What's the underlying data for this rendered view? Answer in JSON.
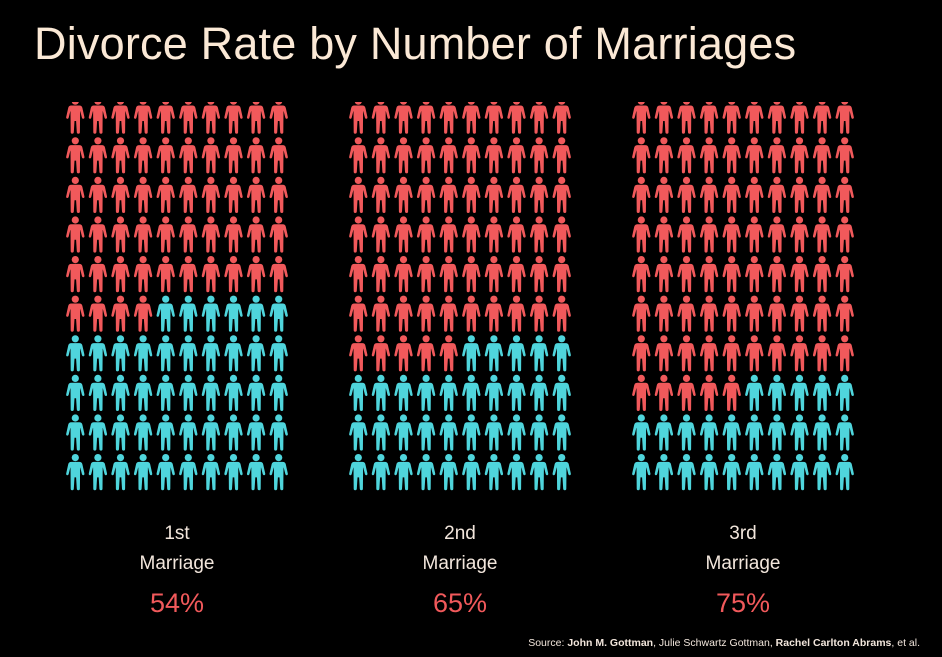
{
  "title": "Divorce Rate by Number of Marriages",
  "colors": {
    "divorced": "#f1595b",
    "not_divorced": "#4fd5dc",
    "background": "#000000",
    "text": "#f2e6dc"
  },
  "chart_data": {
    "type": "pictogram",
    "title": "Divorce Rate by Number of Marriages",
    "icon": "person-icon",
    "grid": {
      "columns": 10,
      "rows": 10
    },
    "unit": "%",
    "panels": [
      {
        "label_line1": "1st",
        "label_line2": "Marriage",
        "value": 54,
        "value_label": "54%"
      },
      {
        "label_line1": "2nd",
        "label_line2": "Marriage",
        "value": 65,
        "value_label": "65%"
      },
      {
        "label_line1": "3rd",
        "label_line2": "Marriage",
        "value": 75,
        "value_label": "75%"
      }
    ]
  },
  "source": {
    "prefix": "Source: ",
    "author1": "John M. Gottman",
    "sep1": ", ",
    "author2": "Julie Schwartz Gottman",
    "sep2": ", ",
    "author3": "Rachel Carlton Abrams",
    "suffix": ", et al."
  }
}
